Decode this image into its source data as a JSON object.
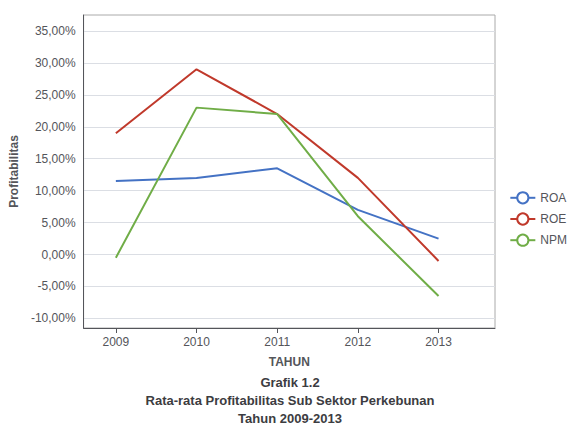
{
  "chart_data": {
    "type": "line",
    "title": [
      "Grafik 1.2",
      "Rata-rata Profitabilitas Sub Sektor Perkebunan",
      "Tahun 2009-2013"
    ],
    "x_label": "TAHUN",
    "y_label": "Profitabilitas",
    "x": [
      2009,
      2010,
      2011,
      2012,
      2013
    ],
    "series": [
      {
        "name": "ROA",
        "color": "#4472C4",
        "values": [
          0.115,
          0.12,
          0.135,
          0.07,
          0.025
        ]
      },
      {
        "name": "ROE",
        "color": "#C0392B",
        "values": [
          0.19,
          0.29,
          0.22,
          0.12,
          -0.01
        ]
      },
      {
        "name": "NPM",
        "color": "#70AD47",
        "values": [
          -0.005,
          0.23,
          0.22,
          0.06,
          -0.065
        ]
      }
    ],
    "xlim": [
      2008.6,
      2013.7
    ],
    "xticks": [
      2009,
      2010,
      2011,
      2012,
      2013
    ],
    "ylim": [
      -0.115,
      0.375
    ],
    "yticks": [
      {
        "value": -0.1,
        "label": "-10,00%"
      },
      {
        "value": -0.05,
        "label": "-5,00%"
      },
      {
        "value": 0.0,
        "label": "0,00%"
      },
      {
        "value": 0.05,
        "label": "5,00%"
      },
      {
        "value": 0.1,
        "label": "10,00%"
      },
      {
        "value": 0.15,
        "label": "15,00%"
      },
      {
        "value": 0.2,
        "label": "20,00%"
      },
      {
        "value": 0.25,
        "label": "25,00%"
      },
      {
        "value": 0.3,
        "label": "30,00%"
      },
      {
        "value": 0.35,
        "label": "35,00%"
      }
    ],
    "grid": true,
    "legend": "right"
  }
}
